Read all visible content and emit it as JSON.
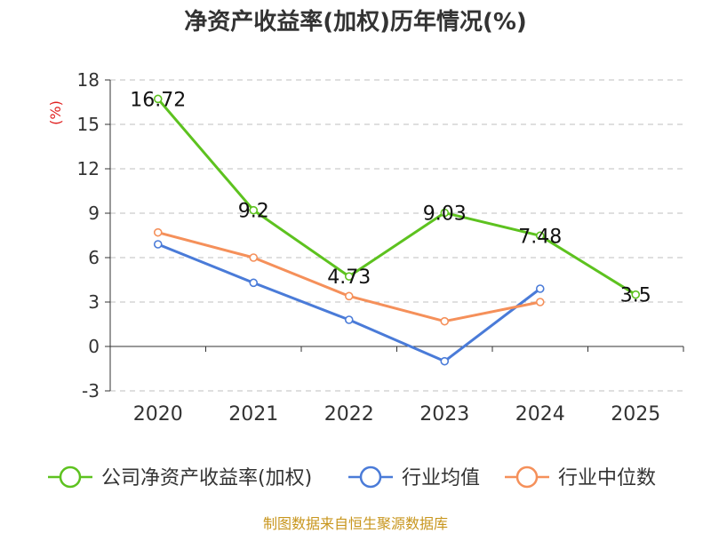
{
  "chart_data": {
    "type": "line",
    "title": "净资产收益率(加权)历年情况(%)",
    "ylabel": "(%)",
    "xlabel": "",
    "categories": [
      "2020",
      "2021",
      "2022",
      "2023",
      "2024",
      "2025"
    ],
    "ylim": [
      -3,
      18
    ],
    "yticks": [
      18,
      15,
      12,
      9,
      6,
      3,
      0,
      -3
    ],
    "grid": true,
    "legend_position": "bottom",
    "series": [
      {
        "name": "公司净资产收益率(加权)",
        "color": "#5dc21f",
        "values": [
          16.72,
          9.2,
          4.73,
          9.03,
          7.48,
          3.5
        ],
        "labels": [
          "16.72",
          "9.2",
          "4.73",
          "9.03",
          "7.48",
          "3.5"
        ]
      },
      {
        "name": "行业均值",
        "color": "#4a7bd8",
        "values": [
          6.9,
          4.3,
          1.8,
          -1.0,
          3.9,
          null
        ]
      },
      {
        "name": "行业中位数",
        "color": "#f5905a",
        "values": [
          7.7,
          6.0,
          3.4,
          1.7,
          3.0,
          null
        ]
      }
    ],
    "source": "制图数据来自恒生聚源数据库",
    "colors": {
      "axis": "#333333",
      "grid": "#cccccc",
      "unit": "#e02020",
      "source": "#c8961e"
    }
  }
}
